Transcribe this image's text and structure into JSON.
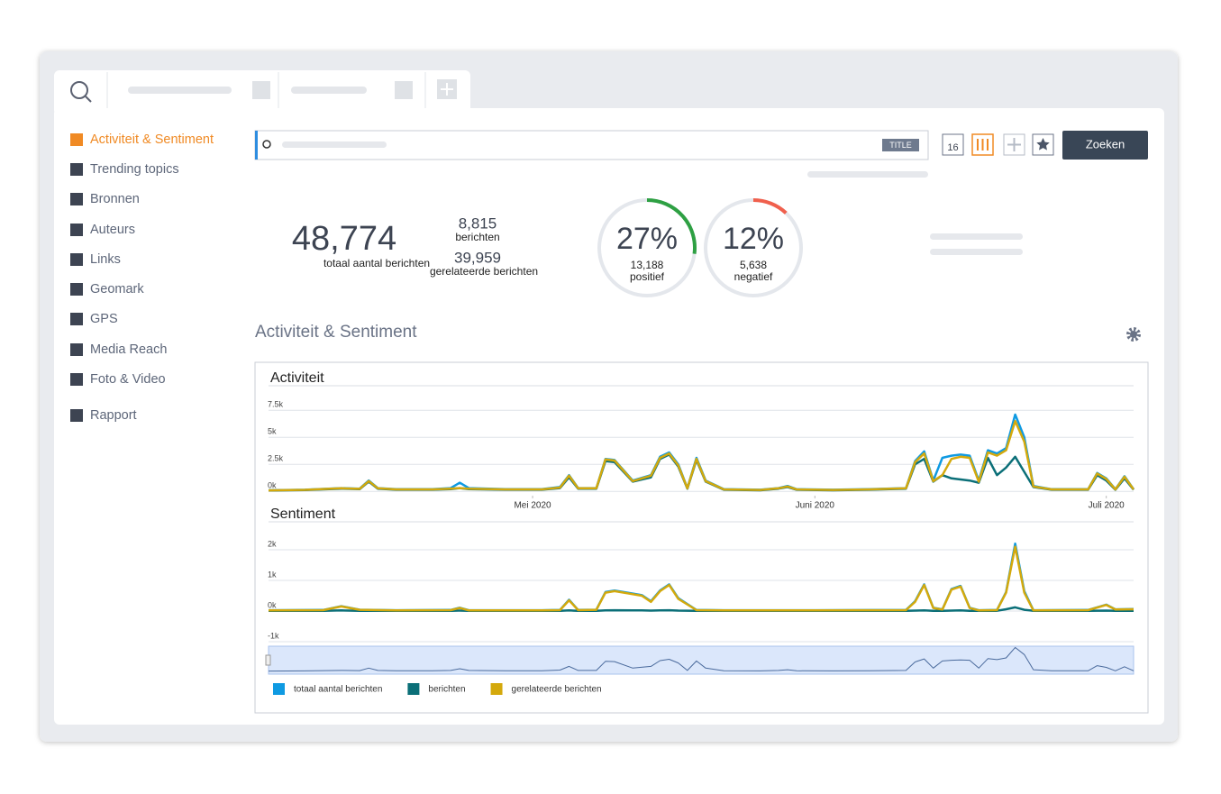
{
  "sidebar": {
    "items": [
      {
        "label": "Activiteit & Sentiment",
        "active": true
      },
      {
        "label": "Trending topics",
        "active": false
      },
      {
        "label": "Bronnen",
        "active": false
      },
      {
        "label": "Auteurs",
        "active": false
      },
      {
        "label": "Links",
        "active": false
      },
      {
        "label": "Geomark",
        "active": false
      },
      {
        "label": "GPS",
        "active": false
      },
      {
        "label": "Media Reach",
        "active": false
      },
      {
        "label": "Foto & Video",
        "active": false
      },
      {
        "label": "Rapport",
        "active": false
      }
    ]
  },
  "search": {
    "badge": "TITLE",
    "calendar": "16",
    "button": "Zoeken"
  },
  "stats": {
    "total": "48,774",
    "total_label": "totaal aantal berichten",
    "messages": "8,815",
    "messages_label": "berichten",
    "related": "39,959",
    "related_label": "gerelateerde berichten"
  },
  "gauges": [
    {
      "value": 27,
      "label": "27%",
      "count": "13,188",
      "caption": "positief",
      "color": "#2ea043"
    },
    {
      "value": 12,
      "label": "12%",
      "count": "5,638",
      "caption": "negatief",
      "color": "#f0604d"
    }
  ],
  "section_title": "Activiteit & Sentiment",
  "chart_data": [
    {
      "type": "line",
      "title": "Activiteit",
      "x": [
        0,
        4,
        8,
        10,
        11,
        12,
        14,
        18,
        20,
        21,
        22,
        26,
        30,
        32,
        33,
        34,
        36,
        37,
        38,
        40,
        42,
        43,
        44,
        45,
        46,
        47,
        48,
        50,
        54,
        56,
        57,
        58,
        62,
        66,
        70,
        71,
        72,
        73,
        74,
        75,
        76,
        77,
        78,
        79,
        80,
        81,
        82,
        83,
        84,
        86,
        90,
        91,
        92,
        93,
        94,
        95
      ],
      "xlim": [
        0,
        95
      ],
      "xticks": [
        {
          "value": 29,
          "label": "Mei 2020"
        },
        {
          "value": 60,
          "label": "Juni 2020"
        },
        {
          "value": 92,
          "label": "Juli 2020"
        }
      ],
      "ylim": [
        -400,
        9600
      ],
      "yticks": [
        {
          "value": 0,
          "label": "0k"
        },
        {
          "value": 2500,
          "label": "2.5k"
        },
        {
          "value": 5000,
          "label": "5k"
        },
        {
          "value": 7500,
          "label": "7.5k"
        }
      ],
      "grid": true,
      "series": [
        {
          "name": "totaal aantal berichten",
          "color": "#0f9ae2",
          "values": [
            100,
            150,
            300,
            250,
            1000,
            300,
            200,
            200,
            300,
            800,
            300,
            200,
            200,
            400,
            1500,
            300,
            300,
            3000,
            2900,
            1000,
            1500,
            3200,
            3600,
            2500,
            300,
            3100,
            1000,
            200,
            150,
            300,
            500,
            200,
            150,
            200,
            300,
            2800,
            3700,
            1000,
            3100,
            3300,
            3400,
            3300,
            1000,
            3800,
            3500,
            4000,
            7100,
            5000,
            500,
            200,
            200,
            1700,
            1200,
            200,
            1400,
            200
          ]
        },
        {
          "name": "berichten",
          "color": "#0b6f78",
          "values": [
            80,
            120,
            250,
            200,
            900,
            250,
            150,
            150,
            200,
            300,
            200,
            150,
            150,
            300,
            1300,
            250,
            250,
            2800,
            2700,
            900,
            1300,
            3000,
            3400,
            2300,
            250,
            2900,
            900,
            150,
            100,
            250,
            400,
            150,
            100,
            150,
            250,
            2500,
            3000,
            900,
            1500,
            1200,
            1100,
            1000,
            800,
            3100,
            1500,
            2200,
            3200,
            1800,
            400,
            150,
            150,
            1500,
            1000,
            150,
            1200,
            150
          ]
        },
        {
          "name": "gerelateerde berichten",
          "color": "#d4a90c",
          "values": [
            90,
            140,
            280,
            230,
            950,
            280,
            180,
            180,
            250,
            300,
            250,
            180,
            180,
            350,
            1450,
            280,
            280,
            2950,
            2850,
            950,
            1450,
            3100,
            3500,
            2400,
            280,
            3000,
            950,
            180,
            130,
            280,
            450,
            180,
            130,
            180,
            280,
            2700,
            3500,
            950,
            1500,
            3000,
            3200,
            3100,
            900,
            3600,
            3300,
            3800,
            6500,
            4600,
            450,
            180,
            180,
            1650,
            1150,
            180,
            1350,
            180
          ]
        }
      ]
    },
    {
      "type": "line",
      "title": "Sentiment",
      "x": [
        0,
        6,
        8,
        10,
        14,
        20,
        21,
        22,
        30,
        32,
        33,
        34,
        36,
        37,
        38,
        40,
        41,
        42,
        43,
        44,
        45,
        47,
        50,
        60,
        70,
        71,
        72,
        73,
        74,
        75,
        76,
        77,
        78,
        80,
        81,
        82,
        83,
        84,
        90,
        92,
        93,
        95
      ],
      "xlim": [
        0,
        95
      ],
      "ylim": [
        -1100,
        2600
      ],
      "yticks": [
        {
          "value": -1000,
          "label": "-1k"
        },
        {
          "value": 0,
          "label": "0k"
        },
        {
          "value": 1000,
          "label": "1k"
        },
        {
          "value": 2000,
          "label": "2k"
        }
      ],
      "grid": true,
      "series": [
        {
          "color": "#0f9ae2",
          "values": [
            25,
            35,
            160,
            45,
            25,
            35,
            110,
            25,
            25,
            35,
            370,
            35,
            45,
            620,
            670,
            570,
            520,
            320,
            670,
            870,
            420,
            35,
            25,
            25,
            35,
            320,
            870,
            110,
            55,
            720,
            820,
            110,
            25,
            35,
            620,
            2200,
            650,
            25,
            35,
            210,
            55,
            65
          ]
        },
        {
          "color": "#0b6f78",
          "values": [
            10,
            10,
            20,
            10,
            10,
            10,
            15,
            10,
            10,
            10,
            20,
            10,
            10,
            20,
            25,
            20,
            20,
            15,
            20,
            25,
            15,
            10,
            10,
            10,
            10,
            15,
            20,
            10,
            10,
            15,
            20,
            10,
            10,
            10,
            60,
            120,
            40,
            10,
            10,
            15,
            10,
            10
          ]
        },
        {
          "color": "#d4a90c",
          "values": [
            20,
            30,
            150,
            40,
            20,
            30,
            100,
            20,
            20,
            30,
            350,
            30,
            40,
            600,
            650,
            550,
            500,
            300,
            650,
            850,
            400,
            30,
            20,
            20,
            30,
            300,
            850,
            100,
            50,
            700,
            800,
            100,
            20,
            30,
            600,
            2100,
            600,
            20,
            30,
            200,
            50,
            60
          ]
        }
      ]
    }
  ]
}
